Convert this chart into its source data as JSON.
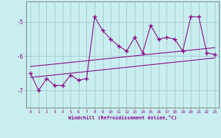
{
  "xlabel": "Windchill (Refroidissement éolien,°C)",
  "bg_color": "#c8eef0",
  "line_color": "#880088",
  "grid_color": "#aacccc",
  "x_ticks": [
    0,
    1,
    2,
    3,
    4,
    5,
    6,
    7,
    8,
    9,
    10,
    11,
    12,
    13,
    14,
    15,
    16,
    17,
    18,
    19,
    20,
    21,
    22,
    23
  ],
  "y_ticks": [
    -7,
    -6,
    -5
  ],
  "xlim": [
    -0.5,
    23.5
  ],
  "ylim": [
    -7.5,
    -4.4
  ],
  "main_data": [
    [
      0,
      -6.5
    ],
    [
      1,
      -7.0
    ],
    [
      2,
      -6.65
    ],
    [
      3,
      -6.85
    ],
    [
      4,
      -6.85
    ],
    [
      5,
      -6.55
    ],
    [
      6,
      -6.7
    ],
    [
      7,
      -6.65
    ],
    [
      8,
      -4.85
    ],
    [
      9,
      -5.25
    ],
    [
      10,
      -5.5
    ],
    [
      11,
      -5.7
    ],
    [
      12,
      -5.85
    ],
    [
      13,
      -5.45
    ],
    [
      14,
      -5.9
    ],
    [
      15,
      -5.1
    ],
    [
      16,
      -5.5
    ],
    [
      17,
      -5.45
    ],
    [
      18,
      -5.5
    ],
    [
      19,
      -5.85
    ],
    [
      20,
      -4.85
    ],
    [
      21,
      -4.85
    ],
    [
      22,
      -5.9
    ],
    [
      23,
      -5.95
    ]
  ],
  "upper_line": [
    [
      0,
      -6.3
    ],
    [
      23,
      -5.75
    ]
  ],
  "lower_line": [
    [
      0,
      -6.62
    ],
    [
      23,
      -6.05
    ]
  ]
}
